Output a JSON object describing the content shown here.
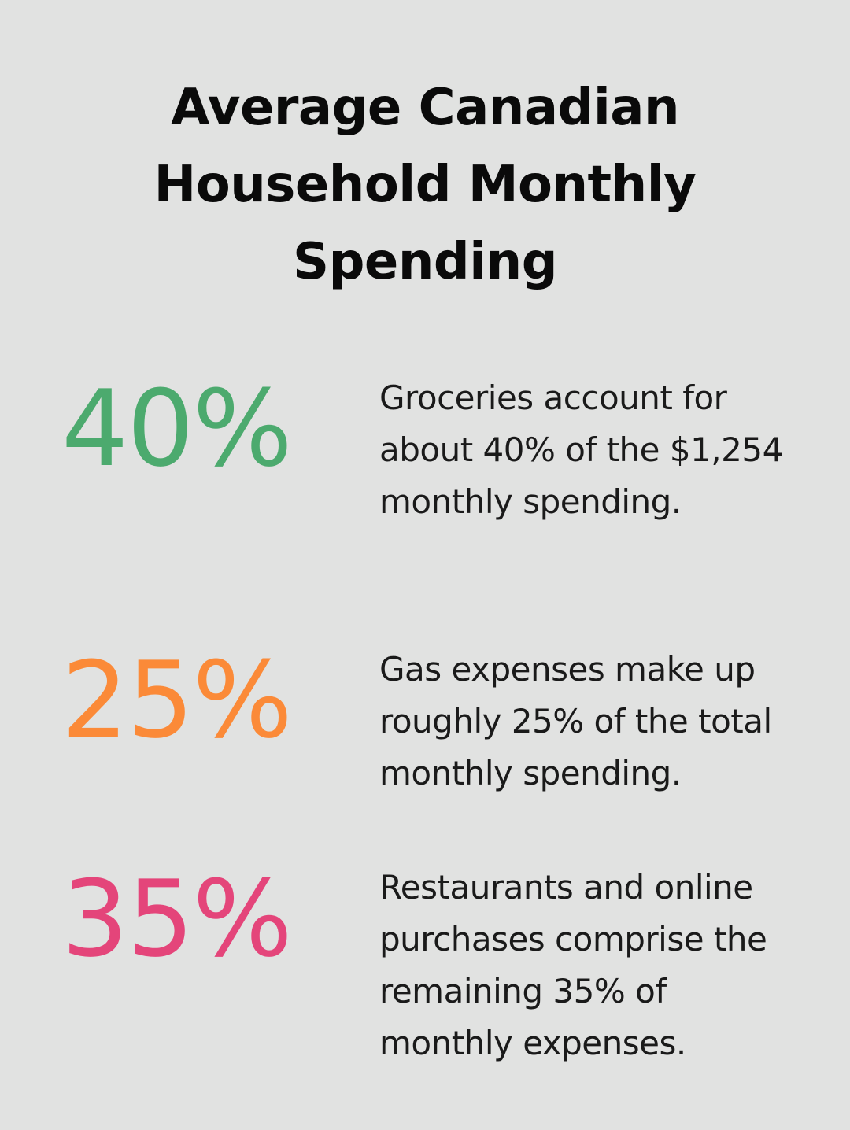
{
  "title": "Average Canadian Household Monthly Spending",
  "stats": [
    {
      "value": "40%",
      "color": "#4caa6e",
      "description": "Groceries account for about 40% of the $1,254 monthly spending."
    },
    {
      "value": "25%",
      "color": "#fb8a38",
      "description": "Gas expenses make up roughly 25% of the total monthly spending."
    },
    {
      "value": "35%",
      "color": "#e4457a",
      "description": "Restaurants and online purchases comprise the remaining 35% of monthly expenses."
    }
  ],
  "colors": {
    "background": "#e1e2e1",
    "text": "#111111"
  }
}
